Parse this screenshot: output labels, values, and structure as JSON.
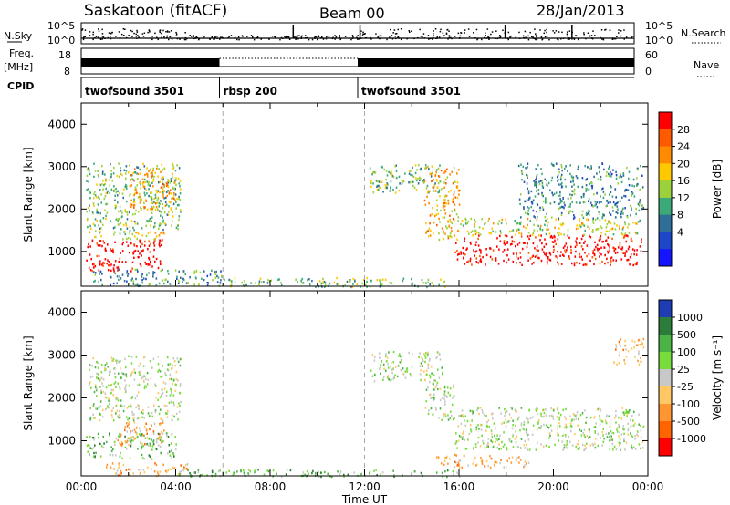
{
  "header": {
    "station": "Saskatoon (fitACF)",
    "beam": "Beam 00",
    "date": "28/Jan/2013"
  },
  "top_panels": {
    "nsky_label": "N.Sky",
    "nsky_ticks": [
      "10^5",
      "10^0"
    ],
    "nsearch_label": "N.Search",
    "nsearch_ticks": [
      "10^5",
      "10^0"
    ],
    "freq_label_1": "Freq.",
    "freq_label_2": "[MHz]",
    "freq_ticks": [
      "18",
      "8"
    ],
    "nave_label": "Nave",
    "nave_ticks": [
      "60",
      "0"
    ],
    "cpid_label": "CPID",
    "cpid_segments": [
      {
        "label": "twofsound 3501",
        "start_h": 0,
        "end_h": 6
      },
      {
        "label": "rbsp 200",
        "start_h": 6,
        "end_h": 12
      },
      {
        "label": "twofsound 3501",
        "start_h": 12,
        "end_h": 24
      }
    ]
  },
  "chart_data": [
    {
      "type": "heatmap",
      "panel": "power",
      "ylabel": "Slant Range [km]",
      "ylim": [
        180,
        4500
      ],
      "yticks": [
        1000,
        2000,
        3000,
        4000
      ],
      "xlim": [
        0,
        24
      ],
      "colorbar_label": "Power [dB]",
      "colorbar_ticks": [
        "28",
        "24",
        "20",
        "16",
        "12",
        "8",
        "4"
      ],
      "colorbar_colors": [
        "#ff0000",
        "#ff5a00",
        "#ff8c00",
        "#ffc800",
        "#9bd23c",
        "#3caa78",
        "#2f6e96",
        "#1e46c8",
        "#1414ff"
      ],
      "regions": [
        {
          "t0": 0.2,
          "t1": 3.4,
          "r0": 560,
          "r1": 1300,
          "c": 0
        },
        {
          "t0": 0.3,
          "t1": 3.5,
          "r0": 1300,
          "r1": 1500,
          "c": 4
        },
        {
          "t0": 0.2,
          "t1": 4.2,
          "r0": 1500,
          "r1": 3100,
          "c": 5
        },
        {
          "t0": 2.0,
          "t1": 4.0,
          "r0": 2000,
          "r1": 3000,
          "c": 3
        },
        {
          "t0": 0.5,
          "t1": 6.0,
          "r0": 200,
          "r1": 600,
          "c": 6
        },
        {
          "t0": 12.2,
          "t1": 15.2,
          "r0": 2400,
          "r1": 3100,
          "c": 5
        },
        {
          "t0": 14.5,
          "t1": 16.0,
          "r0": 1300,
          "r1": 3000,
          "c": 3
        },
        {
          "t0": 15.8,
          "t1": 23.8,
          "r0": 700,
          "r1": 1400,
          "c": 0
        },
        {
          "t0": 15.8,
          "t1": 23.8,
          "r0": 1400,
          "r1": 1800,
          "c": 4
        },
        {
          "t0": 18.5,
          "t1": 23.8,
          "r0": 1800,
          "r1": 3100,
          "c": 6
        },
        {
          "t0": 6.0,
          "t1": 15.5,
          "r0": 180,
          "r1": 400,
          "c": 5
        }
      ]
    },
    {
      "type": "heatmap",
      "panel": "velocity",
      "ylabel": "Slant Range [km]",
      "ylim": [
        180,
        4500
      ],
      "yticks": [
        1000,
        2000,
        3000,
        4000
      ],
      "xlim": [
        0,
        24
      ],
      "xticks": [
        "00:00",
        "04:00",
        "08:00",
        "12:00",
        "16:00",
        "20:00",
        "00:00"
      ],
      "xlabel": "Time UT",
      "colorbar_label": "Velocity [m s⁻¹]",
      "colorbar_ticks": [
        "1000",
        "500",
        "100",
        "25",
        "-25",
        "-100",
        "-500",
        "-1000"
      ],
      "colorbar_colors": [
        "#1e3cb4",
        "#2c7d3c",
        "#4cb446",
        "#78dc3c",
        "#c8c8c8",
        "#ffc864",
        "#ff9632",
        "#ff6400",
        "#ff0000"
      ],
      "regions": [
        {
          "t0": 0.2,
          "t1": 4.0,
          "r0": 600,
          "r1": 1200,
          "c": 3
        },
        {
          "t0": 1.5,
          "t1": 3.5,
          "r0": 900,
          "r1": 1500,
          "c": 6
        },
        {
          "t0": 0.3,
          "t1": 4.2,
          "r0": 1500,
          "r1": 3000,
          "c": 4
        },
        {
          "t0": 1.0,
          "t1": 4.5,
          "r0": 200,
          "r1": 500,
          "c": 6
        },
        {
          "t0": 12.2,
          "t1": 15.3,
          "r0": 2400,
          "r1": 3100,
          "c": 4
        },
        {
          "t0": 14.5,
          "t1": 15.8,
          "r0": 1500,
          "r1": 2400,
          "c": 4
        },
        {
          "t0": 15.8,
          "t1": 23.8,
          "r0": 800,
          "r1": 1800,
          "c": 4
        },
        {
          "t0": 15.0,
          "t1": 19.0,
          "r0": 400,
          "r1": 700,
          "c": 6
        },
        {
          "t0": 4.0,
          "t1": 16.0,
          "r0": 180,
          "r1": 350,
          "c": 3
        },
        {
          "t0": 22.5,
          "t1": 23.8,
          "r0": 2800,
          "r1": 3400,
          "c": 6
        }
      ]
    }
  ]
}
